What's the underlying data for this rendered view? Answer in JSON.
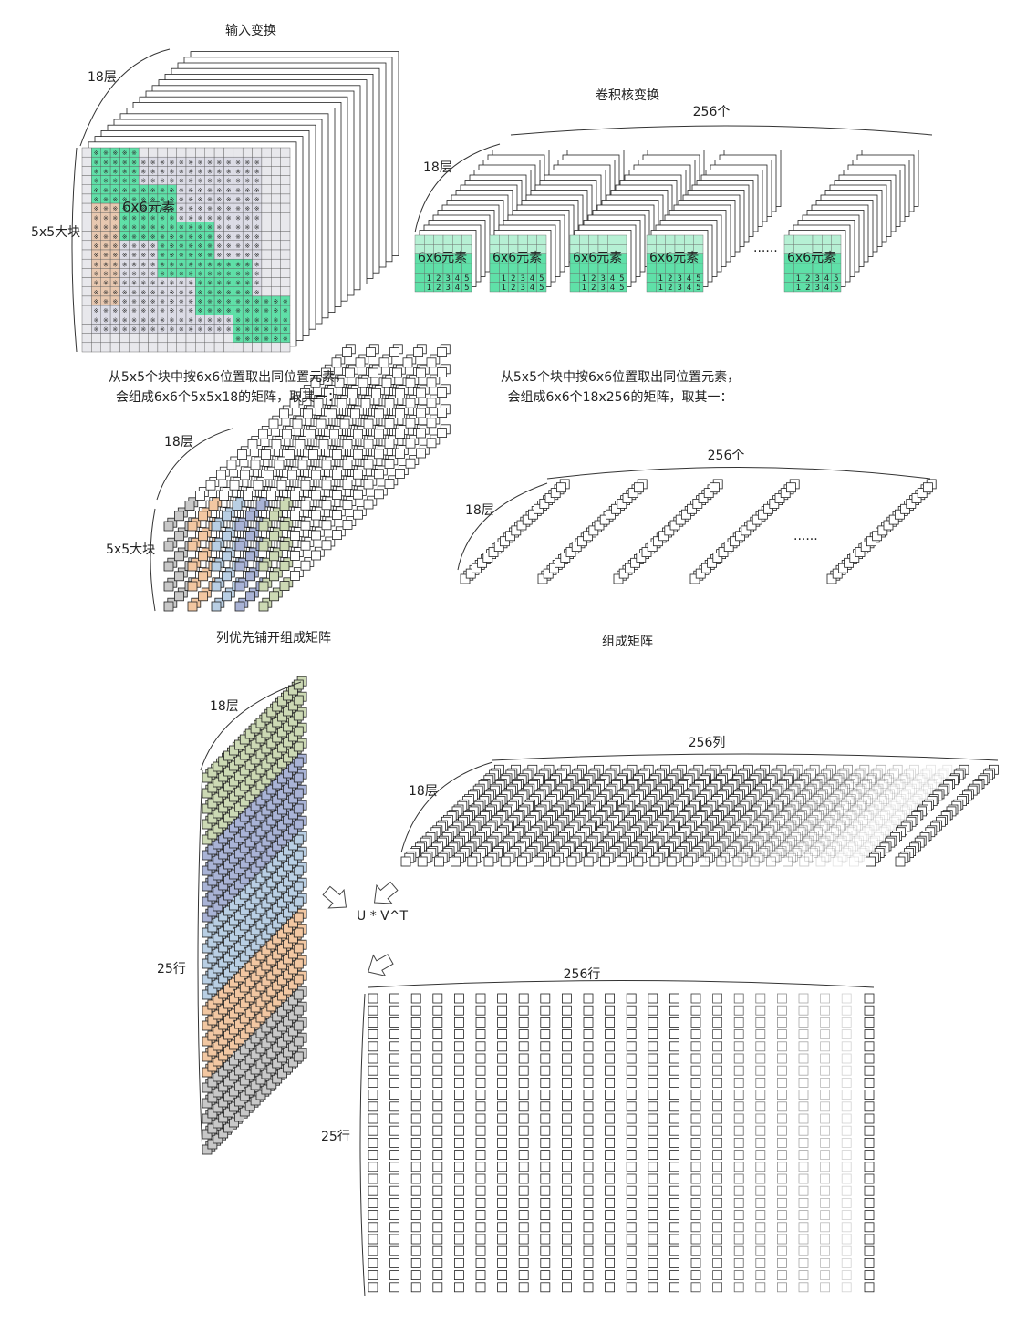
{
  "labels": {
    "input_title": "输入变换",
    "kernel_title": "卷积核变换",
    "input_layers": "18层",
    "input_blocks": "5x5大块",
    "input_elem": "6x6元素",
    "kernel_count": "256个",
    "kernel_layers": "18层",
    "kernel_elem": "6x6元素",
    "kernel_dots": "......",
    "desc_left_1": "从5x5个块中按6x6位置取出同位置元素，",
    "desc_left_2": "会组成6x6个5x5x18的矩阵，取其一：",
    "desc_right_1": "从5x5个块中按6x6位置取出同位置元素，",
    "desc_right_2": "会组成6x6个18x256的矩阵，取其一：",
    "mid_left_layers": "18层",
    "mid_left_blocks": "5x5大块",
    "mid_right_count": "256个",
    "mid_right_layers": "18层",
    "mid_right_dots": "......",
    "flatten_title": "列优先铺开组成矩阵",
    "form_title": "组成矩阵",
    "bottom_left_layers": "18层",
    "bottom_left_rows": "25行",
    "right_cols": "256列",
    "right_layers": "18层",
    "operation": "U * V^T",
    "result_rows_top": "256行",
    "result_rows_left": "25行"
  },
  "grid_digits": [
    "1",
    "2",
    "3",
    "4",
    "5"
  ],
  "colors": {
    "green": "#5fe0a8",
    "green_light": "#b6f0d4",
    "orange": "#f2c7a2",
    "blue": "#b9cfe4",
    "purple": "#a9b3d6",
    "olive": "#ccd9b4",
    "gray": "#c8c8c8",
    "grid_bg": "#e8e8ec"
  }
}
